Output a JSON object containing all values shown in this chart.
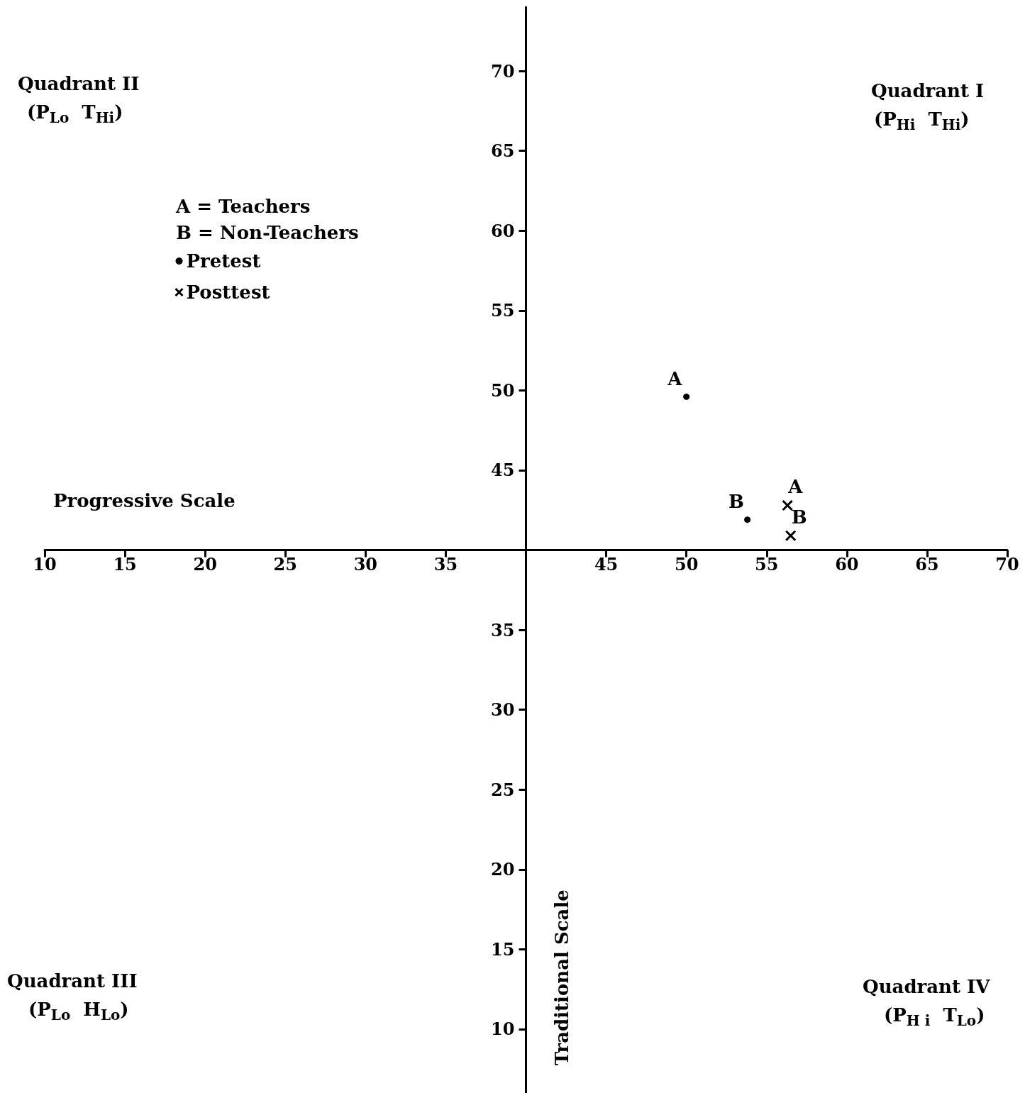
{
  "chart_data": {
    "type": "scatter",
    "xlabel": "Progressive Scale",
    "ylabel": "Traditional Scale",
    "xlim": [
      10,
      70
    ],
    "ylim": [
      6,
      74
    ],
    "xticks": [
      10,
      15,
      20,
      25,
      30,
      35,
      {
        "value": 40,
        "label": null
      },
      45,
      50,
      55,
      60,
      65,
      70
    ],
    "yticks": [
      10,
      15,
      20,
      25,
      30,
      35,
      {
        "value": 40,
        "label": null
      },
      45,
      50,
      55,
      60,
      65,
      70
    ],
    "grid": false,
    "legend": "top left",
    "series": [
      {
        "name": "Pretest",
        "color": "#000000",
        "marker": "circle",
        "x": [
          50,
          53.8
        ],
        "values": [
          49.6,
          41.9
        ],
        "value_labels": [
          "A",
          "B"
        ]
      },
      {
        "name": "Posttest",
        "color": "#000000",
        "marker": "cross",
        "x": [
          56.3,
          56.5
        ],
        "values": [
          42.8,
          40.9
        ],
        "value_labels": [
          "A",
          "B"
        ]
      }
    ],
    "annotations": [
      "Quadrant II",
      "(P$_{Lo}$  T$_{Hi}$)",
      "Quadrant I",
      "(P$_{Hi}$  T$_{Hi}$)",
      "Quadrant III",
      "(P$_{Lo}$  H$_{Lo}$)",
      "Quadrant IV",
      "(P$_{H i}$  T$_{Lo}$)",
      "A = Teachers",
      "B = Non-Teachers"
    ]
  }
}
